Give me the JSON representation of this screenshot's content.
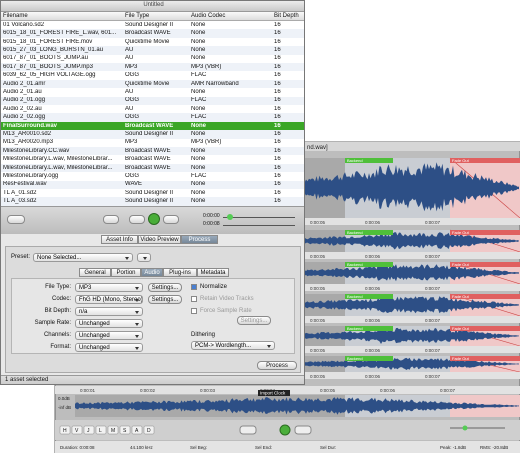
{
  "browser": {
    "title": "Untitled",
    "columns": [
      "Filename",
      "File Type",
      "Audio Codec",
      "Bit Depth"
    ],
    "rows": [
      [
        "01 Volcano.sd2",
        "Sound Designer II",
        "None",
        "16"
      ],
      [
        "6015_18_01_FOREST FIRE_L.wav, 601...",
        "Broadcast WAVE",
        "None",
        "16"
      ],
      [
        "6015_18_01_FOREST FIRE.mov",
        "Quicktime Movie",
        "None",
        "16"
      ],
      [
        "6015_27_03_LONG_BURSTN_01.au",
        "AU",
        "None",
        "16"
      ],
      [
        "6017_87_01_BOOTS_JUMP.au",
        "AU",
        "None",
        "16"
      ],
      [
        "6017_87_01_BOOTS_JUMP.mp3",
        "MP3",
        "MP3 (VBR)",
        "16"
      ],
      [
        "6039_62_05_HIGH VOLTAGE.ogg",
        "OGG",
        "FLAC",
        "16"
      ],
      [
        "Audio 2_01.amr",
        "Quicktime Movie",
        "AMR Narrowband",
        "16"
      ],
      [
        "Audio 2_01.au",
        "AU",
        "None",
        "16"
      ],
      [
        "Audio 2_01.ogg",
        "OGG",
        "FLAC",
        "16"
      ],
      [
        "Audio 2_02.au",
        "AU",
        "None",
        "16"
      ],
      [
        "Audio 2_02.ogg",
        "OGG",
        "FLAC",
        "16"
      ],
      [
        "FinalSurround.wav",
        "Broadcast WAVE",
        "None",
        "16"
      ],
      [
        "M13_AR0010.sd2",
        "Sound Designer II",
        "None",
        "16"
      ],
      [
        "M13_AR0020.mp3",
        "MP3",
        "MP3 (VBR)",
        "16"
      ],
      [
        "MilestoneLibrary.CC.wav",
        "Broadcast WAVE",
        "None",
        "16"
      ],
      [
        "MilestoneLibrary.L.wav, MilestoneLibrar...",
        "Broadcast WAVE",
        "None",
        "16"
      ],
      [
        "MilestoneLibrary.L.wav, MilestoneLibrar...",
        "Broadcast WAVE",
        "None",
        "16"
      ],
      [
        "MilestoneLibrary.ogg",
        "OGG",
        "FLAC",
        "16"
      ],
      [
        "ResFestival.wav",
        "WAVE",
        "None",
        "16"
      ],
      [
        "TL A_01.sd2",
        "Sound Designer II",
        "None",
        "16"
      ],
      [
        "TL A_03.sd2",
        "Sound Designer II",
        "None",
        "16"
      ]
    ],
    "selected_row": 12,
    "times": [
      "0:00:00",
      "0:00:08"
    ],
    "status": "1 asset selected"
  },
  "panel": {
    "tabs": [
      "Asset Info",
      "Video Preview",
      "Process"
    ],
    "active_tab": 2,
    "preset_label": "Preset:",
    "preset": "None Selected...",
    "subtabs": [
      "General",
      "Portion",
      "Audio",
      "Plug-ins",
      "Metadata"
    ],
    "active_subtab": 2,
    "fields": [
      {
        "label": "File Type:",
        "value": "MP3"
      },
      {
        "label": "Codec:",
        "value": "FhG HD (Mono, Stereo)"
      },
      {
        "label": "Bit Depth:",
        "value": "n/a"
      },
      {
        "label": "Sample Rate:",
        "value": "Unchanged"
      },
      {
        "label": "Channels:",
        "value": "Unchanged"
      },
      {
        "label": "Format:",
        "value": "Unchanged"
      }
    ],
    "settings": "Settings...",
    "options": [
      "Normalize",
      "Retain Video Tracks",
      "Force Sample Rate"
    ],
    "dithering_label": "Dithering",
    "dithering": "PCM-> Wordlength...",
    "process": "Process"
  },
  "editor": {
    "title": "nd.wav]",
    "backend": "Backend",
    "fade_out": "Fade Out",
    "ruler": [
      "0:00:05",
      "0:00:06",
      "0:00:07"
    ],
    "lower_ruler": [
      "0:00:01",
      "0:00:02",
      "0:00:03",
      "0:00:04",
      "0:00:05",
      "0:00:06",
      "0:00:07"
    ],
    "levels": [
      "0.0dB",
      "-inf dB"
    ],
    "clip": "Import Clock",
    "toolbar": [
      "H",
      "V",
      "J",
      "L",
      "M",
      "S",
      "A",
      "D"
    ],
    "status": [
      "Duration: 0:00:08",
      "44.100 kHz",
      "Sel Beg:",
      "Sel End:",
      "Sel Dur:",
      "Peak: -1.8dB",
      "RMS: -20.8dB"
    ]
  }
}
